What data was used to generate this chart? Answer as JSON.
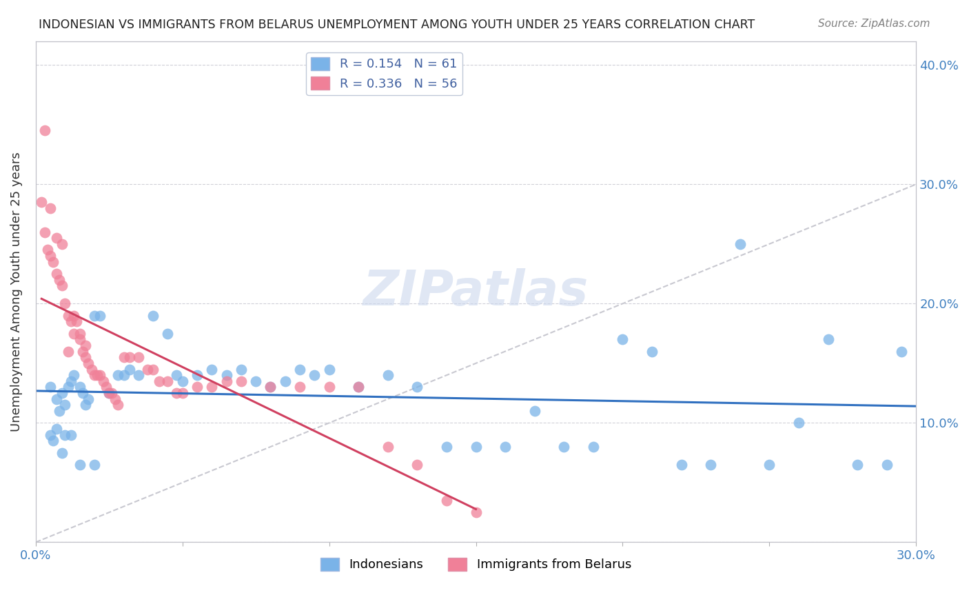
{
  "title": "INDONESIAN VS IMMIGRANTS FROM BELARUS UNEMPLOYMENT AMONG YOUTH UNDER 25 YEARS CORRELATION CHART",
  "source": "Source: ZipAtlas.com",
  "ylabel": "Unemployment Among Youth under 25 years",
  "xlim": [
    0.0,
    0.3
  ],
  "ylim": [
    0.0,
    0.42
  ],
  "xticks": [
    0.0,
    0.05,
    0.1,
    0.15,
    0.2,
    0.25,
    0.3
  ],
  "yticks": [
    0.0,
    0.1,
    0.2,
    0.3,
    0.4
  ],
  "indonesian_color": "#7ab3e8",
  "belarus_color": "#f08098",
  "indonesian_trend_color": "#3070c0",
  "belarus_trend_color": "#d04060",
  "diagonal_color": "#c8c8d0",
  "watermark": "ZIPatlas",
  "legend1_r": "0.154",
  "legend1_n": "61",
  "legend2_r": "0.336",
  "legend2_n": "56",
  "indonesian_x": [
    0.005,
    0.007,
    0.008,
    0.009,
    0.01,
    0.011,
    0.012,
    0.013,
    0.015,
    0.016,
    0.017,
    0.018,
    0.02,
    0.022,
    0.025,
    0.028,
    0.03,
    0.032,
    0.035,
    0.04,
    0.045,
    0.048,
    0.05,
    0.055,
    0.06,
    0.065,
    0.07,
    0.075,
    0.08,
    0.085,
    0.09,
    0.095,
    0.1,
    0.11,
    0.12,
    0.13,
    0.14,
    0.15,
    0.16,
    0.17,
    0.18,
    0.19,
    0.2,
    0.21,
    0.22,
    0.23,
    0.24,
    0.25,
    0.26,
    0.27,
    0.28,
    0.29,
    0.295,
    0.005,
    0.006,
    0.007,
    0.009,
    0.01,
    0.012,
    0.015,
    0.02
  ],
  "indonesian_y": [
    0.13,
    0.12,
    0.11,
    0.125,
    0.115,
    0.13,
    0.135,
    0.14,
    0.13,
    0.125,
    0.115,
    0.12,
    0.19,
    0.19,
    0.125,
    0.14,
    0.14,
    0.145,
    0.14,
    0.19,
    0.175,
    0.14,
    0.135,
    0.14,
    0.145,
    0.14,
    0.145,
    0.135,
    0.13,
    0.135,
    0.145,
    0.14,
    0.145,
    0.13,
    0.14,
    0.13,
    0.08,
    0.08,
    0.08,
    0.11,
    0.08,
    0.08,
    0.17,
    0.16,
    0.065,
    0.065,
    0.25,
    0.065,
    0.1,
    0.17,
    0.065,
    0.065,
    0.16,
    0.09,
    0.085,
    0.095,
    0.075,
    0.09,
    0.09,
    0.065,
    0.065
  ],
  "belarus_x": [
    0.002,
    0.003,
    0.004,
    0.005,
    0.006,
    0.007,
    0.008,
    0.009,
    0.01,
    0.011,
    0.012,
    0.013,
    0.014,
    0.015,
    0.016,
    0.017,
    0.018,
    0.019,
    0.02,
    0.021,
    0.022,
    0.023,
    0.024,
    0.025,
    0.026,
    0.027,
    0.028,
    0.03,
    0.032,
    0.035,
    0.038,
    0.04,
    0.042,
    0.045,
    0.048,
    0.05,
    0.055,
    0.06,
    0.065,
    0.07,
    0.08,
    0.09,
    0.1,
    0.11,
    0.12,
    0.13,
    0.14,
    0.15,
    0.003,
    0.005,
    0.007,
    0.009,
    0.011,
    0.013,
    0.015,
    0.017
  ],
  "belarus_y": [
    0.285,
    0.26,
    0.245,
    0.24,
    0.235,
    0.225,
    0.22,
    0.215,
    0.2,
    0.19,
    0.185,
    0.19,
    0.185,
    0.175,
    0.16,
    0.155,
    0.15,
    0.145,
    0.14,
    0.14,
    0.14,
    0.135,
    0.13,
    0.125,
    0.125,
    0.12,
    0.115,
    0.155,
    0.155,
    0.155,
    0.145,
    0.145,
    0.135,
    0.135,
    0.125,
    0.125,
    0.13,
    0.13,
    0.135,
    0.135,
    0.13,
    0.13,
    0.13,
    0.13,
    0.08,
    0.065,
    0.035,
    0.025,
    0.345,
    0.28,
    0.255,
    0.25,
    0.16,
    0.175,
    0.17,
    0.165
  ]
}
